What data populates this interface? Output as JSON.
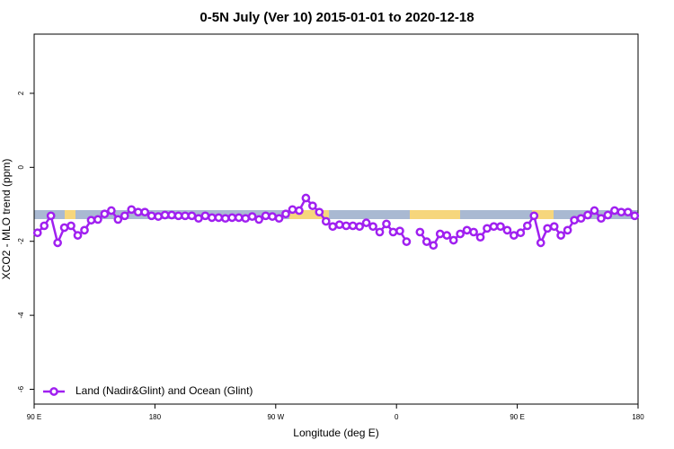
{
  "chart_data": {
    "type": "line",
    "title": "0-5N July (Ver 10)   2015-01-01 to 2020-12-18",
    "x_label": "Longitude (deg E)",
    "y_label": "XCO2 - MLO trend (ppm)",
    "x": [
      92.5,
      97.5,
      102.5,
      107.5,
      112.5,
      117.5,
      122.5,
      127.5,
      132.5,
      137.5,
      142.5,
      147.5,
      152.5,
      157.5,
      162.5,
      167.5,
      172.5,
      177.5,
      182.5,
      187.5,
      192.5,
      197.5,
      202.5,
      207.5,
      212.5,
      217.5,
      222.5,
      227.5,
      232.5,
      237.5,
      242.5,
      247.5,
      252.5,
      257.5,
      262.5,
      267.5,
      272.5,
      277.5,
      282.5,
      287.5,
      292.5,
      297.5,
      302.5,
      307.5,
      312.5,
      317.5,
      322.5,
      327.5,
      332.5,
      337.5,
      342.5,
      347.5,
      352.5,
      357.5,
      362.5,
      367.5,
      372.5,
      377.5,
      382.5,
      387.5,
      392.5,
      397.5,
      402.5,
      407.5,
      412.5,
      417.5,
      422.5,
      427.5,
      432.5,
      437.5,
      442.5,
      447.5,
      452.5,
      457.5,
      462.5,
      467.5,
      472.5,
      477.5,
      482.5,
      487.5,
      492.5,
      497.5,
      502.5,
      507.5,
      512.5,
      517.5,
      522.5,
      527.5,
      532.5,
      537.5
    ],
    "series": [
      {
        "name": "Land (Nadir&Glint) and Ocean (Glint)",
        "color": "#a020f0",
        "values": [
          -1.77,
          -1.58,
          -1.31,
          -2.04,
          -1.63,
          -1.58,
          -1.84,
          -1.7,
          -1.43,
          -1.41,
          -1.26,
          -1.17,
          -1.41,
          -1.31,
          -1.14,
          -1.21,
          -1.21,
          -1.31,
          -1.33,
          -1.29,
          -1.29,
          -1.31,
          -1.31,
          -1.31,
          -1.38,
          -1.31,
          -1.36,
          -1.36,
          -1.38,
          -1.36,
          -1.36,
          -1.38,
          -1.33,
          -1.41,
          -1.31,
          -1.33,
          -1.38,
          -1.26,
          -1.14,
          -1.17,
          -0.83,
          -1.04,
          -1.21,
          -1.46,
          -1.6,
          -1.55,
          -1.58,
          -1.58,
          -1.6,
          -1.5,
          -1.6,
          -1.75,
          -1.53,
          -1.75,
          -1.72,
          -2.01,
          null,
          -1.75,
          -2.01,
          -2.11,
          -1.8,
          -1.84,
          -1.97,
          -1.8,
          -1.7,
          -1.75,
          -1.89,
          -1.65,
          -1.6,
          -1.6,
          -1.7,
          -1.84,
          -1.77,
          -1.58,
          -1.31,
          -2.04,
          -1.65,
          -1.6,
          -1.84,
          -1.7,
          -1.43,
          -1.38,
          -1.29,
          -1.17,
          -1.38,
          -1.29,
          -1.17,
          -1.21,
          -1.21,
          -1.31
        ]
      }
    ],
    "xlim": [
      90,
      540
    ],
    "xticks": [
      {
        "value": 90,
        "label": "90 E"
      },
      {
        "value": 180,
        "label": "180"
      },
      {
        "value": 270,
        "label": "90 W"
      },
      {
        "value": 360,
        "label": "0"
      },
      {
        "value": 450,
        "label": "90 E"
      },
      {
        "value": 540,
        "label": "180"
      }
    ],
    "ylim": [
      -6.4,
      3.6
    ],
    "yticks": [
      -6,
      -4,
      -2,
      0,
      2
    ],
    "legend": "bottom-left"
  }
}
